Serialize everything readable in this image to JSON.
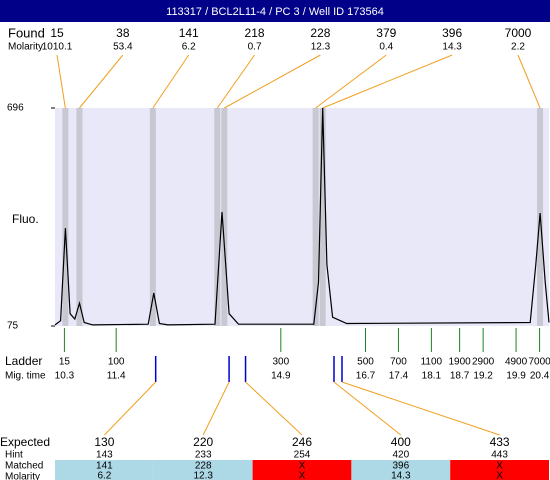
{
  "title": "113317 / BCL2L11-4 / PC 3 / Well ID 173564",
  "found": {
    "label": "Found",
    "sub_label": "Molarity",
    "peaks": [
      {
        "size": 15,
        "molarity": 1010.1,
        "time": 10.32
      },
      {
        "size": 38,
        "molarity": 53.4,
        "time": 10.62
      },
      {
        "size": 141,
        "molarity": 6.2,
        "time": 12.18
      },
      {
        "size": 218,
        "molarity": 0.7,
        "time": 13.55
      },
      {
        "size": 228,
        "molarity": 12.3,
        "time": 13.7
      },
      {
        "size": 379,
        "molarity": 0.4,
        "time": 15.64
      },
      {
        "size": 396,
        "molarity": 14.3,
        "time": 15.79
      },
      {
        "size": 7000,
        "molarity": 2.2,
        "time": 20.41
      }
    ]
  },
  "chart_data": {
    "type": "line",
    "ylabel": "Fluo.",
    "ylim": [
      75,
      696
    ],
    "yticks": [
      75,
      696
    ],
    "xlim": [
      10.1,
      20.6
    ],
    "color": "#000000",
    "x": [
      10.1,
      10.22,
      10.32,
      10.42,
      10.52,
      10.62,
      10.72,
      10.9,
      12.08,
      12.2,
      12.32,
      12.5,
      13.5,
      13.65,
      13.8,
      14.0,
      15.6,
      15.7,
      15.79,
      15.88,
      16.0,
      16.3,
      20.2,
      20.32,
      20.41,
      20.52,
      20.6
    ],
    "values": [
      78,
      90,
      354,
      110,
      95,
      140,
      85,
      78,
      80,
      169,
      82,
      78,
      80,
      400,
      110,
      80,
      80,
      200,
      696,
      250,
      100,
      82,
      85,
      250,
      397,
      200,
      85
    ]
  },
  "ladder": {
    "label": "Ladder",
    "sub_label": "Mig. time",
    "sizes": [
      15,
      100,
      300,
      500,
      700,
      1100,
      1900,
      2900,
      4900,
      7000
    ],
    "times": [
      10.3,
      11.4,
      14.9,
      16.7,
      17.4,
      18.1,
      18.7,
      19.2,
      19.9,
      20.4
    ]
  },
  "expected": {
    "labels": [
      "Expected",
      "Hint",
      "Matched",
      "Molarity"
    ],
    "match_color": "#add8e6",
    "miss_color": "#ff0000",
    "columns": [
      {
        "expected": 130,
        "hint": 143,
        "matched": 141,
        "molarity": 6.2,
        "marker": 12.24
      },
      {
        "expected": 220,
        "hint": 233,
        "matched": 228,
        "molarity": 12.3,
        "marker": 13.8
      },
      {
        "expected": 246,
        "hint": 254,
        "matched": "X",
        "molarity": "X",
        "marker": 14.15
      },
      {
        "expected": 400,
        "hint": 420,
        "matched": 396,
        "molarity": 14.3,
        "marker": 16.03
      },
      {
        "expected": 433,
        "hint": 443,
        "matched": "X",
        "molarity": "X",
        "marker": 16.2
      }
    ]
  }
}
